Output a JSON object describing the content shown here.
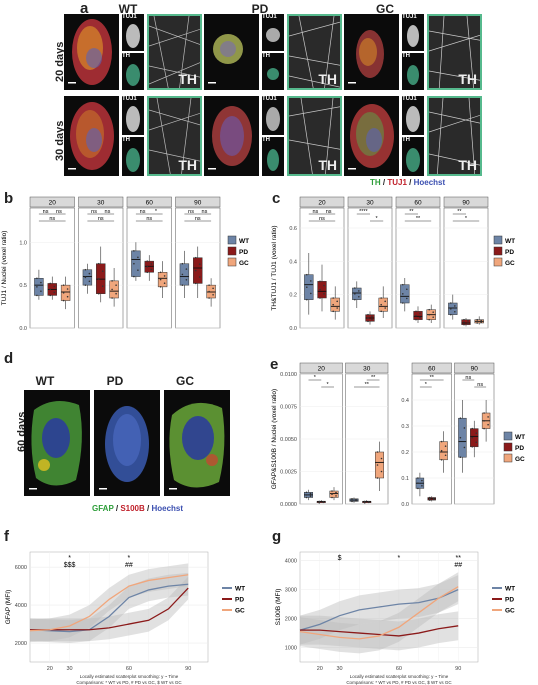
{
  "panel_a": {
    "label": "a",
    "groups": [
      "WT",
      "PD",
      "GC"
    ],
    "rows": [
      "20 days",
      "30 days"
    ],
    "tile_top": "TUJ1",
    "tile_bottom": "TH",
    "zoom_label": "TH",
    "legend": {
      "th": "TH",
      "sep1": " / ",
      "tuj1": "TUJ1",
      "sep2": " / ",
      "hoechst": "Hoechst"
    },
    "colors": {
      "th": "#2e9e3a",
      "tuj1": "#c0202a",
      "hoechst": "#3b4fb0",
      "frame": "#56b98d"
    }
  },
  "panel_b": {
    "label": "b"
  },
  "panel_c": {
    "label": "c"
  },
  "panel_d": {
    "label": "d",
    "groups": [
      "WT",
      "PD",
      "GC"
    ],
    "row": "60 days",
    "legend": {
      "gfap": "GFAP",
      "sep1": " / ",
      "s100b": "S100B",
      "sep2": " / ",
      "hoechst": "Hoechst"
    },
    "colors": {
      "gfap": "#2e9e3a",
      "s100b": "#c0202a",
      "hoechst": "#3b4fb0"
    }
  },
  "panel_e": {
    "label": "e"
  },
  "panel_f": {
    "label": "f"
  },
  "panel_g": {
    "label": "g"
  },
  "legend_groups": [
    "WT",
    "PD",
    "GC"
  ],
  "group_colors": {
    "WT": "#6d84a6",
    "PD": "#8b1a1a",
    "GC": "#f0a67c"
  },
  "chart_data": [
    {
      "id": "b",
      "type": "box",
      "ylabel": "TUJ1 / Nuclei (voxel ratio)",
      "facets": [
        "20",
        "30",
        "60",
        "90"
      ],
      "ylim": [
        0,
        1.4
      ],
      "yticks": [
        "0.0",
        "0.5",
        "1.0"
      ],
      "groups": [
        "WT",
        "PD",
        "GC"
      ],
      "boxes": [
        [
          [
            0.33,
            0.38,
            0.5,
            0.58,
            0.68
          ],
          [
            0.33,
            0.38,
            0.45,
            0.52,
            0.6
          ],
          [
            0.22,
            0.32,
            0.42,
            0.5,
            0.6
          ]
        ],
        [
          [
            0.4,
            0.5,
            0.6,
            0.68,
            0.75
          ],
          [
            0.3,
            0.4,
            0.57,
            0.75,
            0.95
          ],
          [
            0.25,
            0.35,
            0.43,
            0.55,
            0.7
          ]
        ],
        [
          [
            0.55,
            0.6,
            0.8,
            0.9,
            1.0
          ],
          [
            0.55,
            0.65,
            0.72,
            0.78,
            0.85
          ],
          [
            0.35,
            0.48,
            0.58,
            0.65,
            0.78
          ]
        ],
        [
          [
            0.35,
            0.5,
            0.6,
            0.75,
            0.9
          ],
          [
            0.35,
            0.52,
            0.7,
            0.82,
            0.95
          ],
          [
            0.25,
            0.35,
            0.42,
            0.5,
            0.58
          ]
        ]
      ],
      "sig": [
        [
          {
            "a": 0,
            "b": 1,
            "t": "ns",
            "lvl": 0
          },
          {
            "a": 1,
            "b": 2,
            "t": "ns",
            "lvl": 0
          },
          {
            "a": 0,
            "b": 2,
            "t": "ns",
            "lvl": 1
          }
        ],
        [
          {
            "a": 0,
            "b": 1,
            "t": "ns",
            "lvl": 0
          },
          {
            "a": 1,
            "b": 2,
            "t": "ns",
            "lvl": 0
          },
          {
            "a": 0,
            "b": 2,
            "t": "ns",
            "lvl": 1
          }
        ],
        [
          {
            "a": 0,
            "b": 1,
            "t": "ns",
            "lvl": 0
          },
          {
            "a": 1,
            "b": 2,
            "t": "*",
            "lvl": 0
          },
          {
            "a": 0,
            "b": 2,
            "t": "ns",
            "lvl": 1
          }
        ],
        [
          {
            "a": 0,
            "b": 1,
            "t": "ns",
            "lvl": 0
          },
          {
            "a": 1,
            "b": 2,
            "t": "ns",
            "lvl": 0
          },
          {
            "a": 0,
            "b": 2,
            "t": "ns",
            "lvl": 1
          }
        ]
      ]
    },
    {
      "id": "c",
      "type": "box",
      "ylabel": "TH&TUJ1 / TUJ1 (voxel ratio)",
      "facets": [
        "20",
        "30",
        "60",
        "90"
      ],
      "ylim": [
        0,
        0.72
      ],
      "yticks": [
        "0.0",
        "0.2",
        "0.4",
        "0.6"
      ],
      "groups": [
        "WT",
        "PD",
        "GC"
      ],
      "boxes": [
        [
          [
            0.08,
            0.17,
            0.26,
            0.32,
            0.45
          ],
          [
            0.1,
            0.18,
            0.22,
            0.28,
            0.38
          ],
          [
            0.05,
            0.1,
            0.13,
            0.18,
            0.25
          ]
        ],
        [
          [
            0.12,
            0.17,
            0.21,
            0.24,
            0.28
          ],
          [
            0.02,
            0.04,
            0.06,
            0.08,
            0.1
          ],
          [
            0.06,
            0.1,
            0.13,
            0.18,
            0.25
          ]
        ],
        [
          [
            0.1,
            0.15,
            0.19,
            0.26,
            0.3
          ],
          [
            0.03,
            0.05,
            0.07,
            0.1,
            0.13
          ],
          [
            0.03,
            0.05,
            0.08,
            0.11,
            0.14
          ]
        ],
        [
          [
            0.05,
            0.08,
            0.12,
            0.15,
            0.2
          ],
          [
            0.01,
            0.02,
            0.03,
            0.05,
            0.06
          ],
          [
            0.02,
            0.03,
            0.04,
            0.05,
            0.07
          ]
        ]
      ],
      "sig": [
        [
          {
            "a": 0,
            "b": 1,
            "t": "ns",
            "lvl": 0
          },
          {
            "a": 1,
            "b": 2,
            "t": "ns",
            "lvl": 0
          },
          {
            "a": 0,
            "b": 2,
            "t": "ns",
            "lvl": 1
          }
        ],
        [
          {
            "a": 0,
            "b": 1,
            "t": "****",
            "lvl": 0
          },
          {
            "a": 1,
            "b": 2,
            "t": "*",
            "lvl": 1
          }
        ],
        [
          {
            "a": 0,
            "b": 1,
            "t": "**",
            "lvl": 0
          },
          {
            "a": 0,
            "b": 2,
            "t": "**",
            "lvl": 1
          }
        ],
        [
          {
            "a": 0,
            "b": 1,
            "t": "**",
            "lvl": 0
          },
          {
            "a": 0,
            "b": 2,
            "t": "*",
            "lvl": 1
          }
        ]
      ]
    },
    {
      "id": "e1",
      "type": "box",
      "ylabel": "GFAP&S100B / Nuclei (voxel ratio)",
      "facets": [
        "20",
        "30"
      ],
      "ylim": [
        0,
        0.01
      ],
      "yticks": [
        "0.0000",
        "0.0025",
        "0.0050",
        "0.0075",
        "0.0100"
      ],
      "groups": [
        "WT",
        "PD",
        "GC"
      ],
      "boxes": [
        [
          [
            0.0003,
            0.0005,
            0.0007,
            0.0009,
            0.0011
          ],
          [
            0.0001,
            0.0001,
            0.0002,
            0.0002,
            0.0003
          ],
          [
            0.0003,
            0.0005,
            0.0008,
            0.001,
            0.0013
          ]
        ],
        [
          [
            0.0001,
            0.0002,
            0.0003,
            0.0004,
            0.0005
          ],
          [
            0.0001,
            0.0001,
            0.0002,
            0.0002,
            0.0003
          ],
          [
            0.001,
            0.002,
            0.0032,
            0.004,
            0.0048
          ]
        ]
      ],
      "sig": [
        [
          {
            "a": 0,
            "b": 1,
            "t": "*",
            "lvl": 0
          },
          {
            "a": 1,
            "b": 2,
            "t": "*",
            "lvl": 1
          }
        ],
        [
          {
            "a": 1,
            "b": 2,
            "t": "**",
            "lvl": 0
          },
          {
            "a": 0,
            "b": 2,
            "t": "**",
            "lvl": 1
          }
        ]
      ]
    },
    {
      "id": "e2",
      "type": "box",
      "ylabel": "",
      "facets": [
        "60",
        "90"
      ],
      "ylim": [
        0,
        0.5
      ],
      "yticks": [
        "0.0",
        "0.1",
        "0.2",
        "0.3",
        "0.4"
      ],
      "groups": [
        "WT",
        "PD",
        "GC"
      ],
      "boxes": [
        [
          [
            0.03,
            0.06,
            0.08,
            0.1,
            0.12
          ],
          [
            0.01,
            0.015,
            0.02,
            0.025,
            0.03
          ],
          [
            0.12,
            0.17,
            0.2,
            0.24,
            0.28
          ]
        ],
        [
          [
            0.12,
            0.18,
            0.24,
            0.33,
            0.4
          ],
          [
            0.18,
            0.22,
            0.26,
            0.29,
            0.32
          ],
          [
            0.24,
            0.29,
            0.32,
            0.35,
            0.4
          ]
        ]
      ],
      "sig": [
        [
          {
            "a": 0,
            "b": 2,
            "t": "**",
            "lvl": 0
          },
          {
            "a": 0,
            "b": 1,
            "t": "*",
            "lvl": 1
          }
        ],
        [
          {
            "a": 0,
            "b": 1,
            "t": "ns",
            "lvl": 0
          },
          {
            "a": 1,
            "b": 2,
            "t": "ns",
            "lvl": 1
          }
        ]
      ]
    },
    {
      "id": "f",
      "type": "line",
      "ylabel": "GFAP (MFI)",
      "xlim": [
        10,
        100
      ],
      "ylim": [
        1000,
        6800
      ],
      "xticks": [
        20,
        30,
        40,
        50,
        60,
        70,
        80,
        90
      ],
      "yticks": [
        2000,
        4000,
        6000
      ],
      "x": [
        10,
        20,
        30,
        40,
        50,
        60,
        70,
        80,
        90
      ],
      "series": [
        {
          "name": "WT",
          "values": [
            2700,
            2650,
            2600,
            2700,
            3400,
            4400,
            4800,
            5000,
            5100
          ]
        },
        {
          "name": "PD",
          "values": [
            2700,
            2700,
            2700,
            2700,
            2800,
            3000,
            3200,
            3800,
            4900
          ]
        },
        {
          "name": "GC",
          "values": [
            2650,
            2700,
            2900,
            3400,
            4300,
            5000,
            5300,
            5450,
            5600
          ]
        }
      ],
      "band": 600,
      "annotations": [
        {
          "x": 30,
          "t": "*",
          "dy": 0
        },
        {
          "x": 30,
          "t": "$$$",
          "dy": 1
        },
        {
          "x": 60,
          "t": "*",
          "dy": 0
        },
        {
          "x": 60,
          "t": "##",
          "dy": 1
        }
      ],
      "caption": "Locally estimated scatterplot smoothing: y ~ Time",
      "caption2": "Comparisons: * WT vs PD, # PD vs GC, $ WT vs GC"
    },
    {
      "id": "g",
      "type": "line",
      "ylabel": "S100B (MFI)",
      "xlim": [
        10,
        100
      ],
      "ylim": [
        500,
        4300
      ],
      "xticks": [
        20,
        30,
        40,
        50,
        60,
        70,
        80,
        90
      ],
      "yticks": [
        1000,
        2000,
        3000,
        4000
      ],
      "x": [
        10,
        20,
        30,
        40,
        50,
        60,
        70,
        80,
        90
      ],
      "series": [
        {
          "name": "WT",
          "values": [
            1600,
            1800,
            2100,
            2300,
            2400,
            2500,
            2550,
            2700,
            3000
          ]
        },
        {
          "name": "PD",
          "values": [
            1600,
            1600,
            1550,
            1500,
            1450,
            1400,
            1500,
            1650,
            1750
          ]
        },
        {
          "name": "GC",
          "values": [
            1550,
            1450,
            1350,
            1300,
            1400,
            1700,
            2200,
            2700,
            3100
          ]
        }
      ],
      "band": 500,
      "annotations": [
        {
          "x": 30,
          "t": "$",
          "dy": 0
        },
        {
          "x": 60,
          "t": "*",
          "dy": 0
        },
        {
          "x": 90,
          "t": "**",
          "dy": 0
        },
        {
          "x": 90,
          "t": "##",
          "dy": 1
        }
      ],
      "caption": "Locally estimated scatterplot smoothing: y ~ Time",
      "caption2": "Comparisons: * WT vs PD, # PD vs GC, $ WT vs GC"
    }
  ]
}
